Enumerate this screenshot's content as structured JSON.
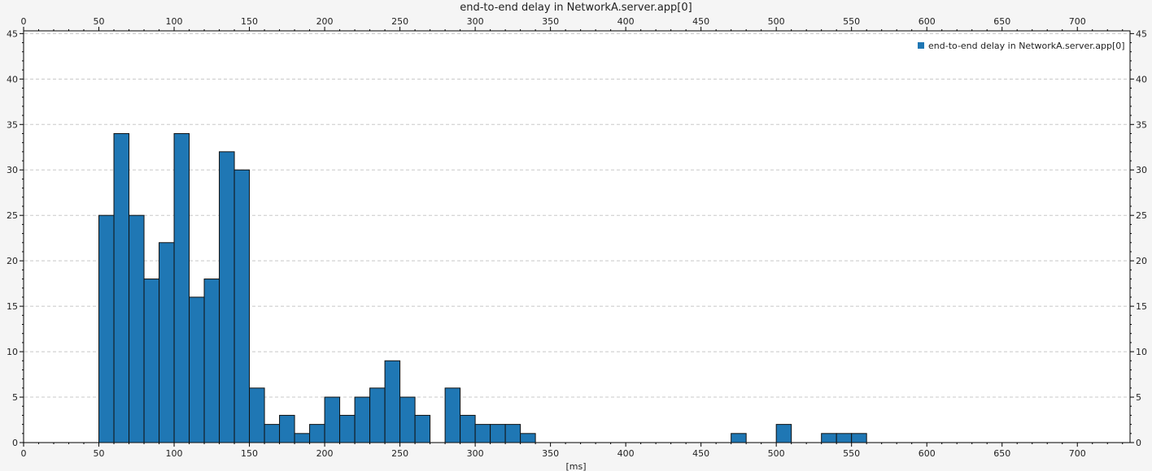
{
  "chart_data": {
    "type": "bar",
    "title": "end-to-end delay in NetworkA.server.app[0]",
    "xlabel": "[ms]",
    "ylabel": "",
    "legend": "top-right",
    "grid": true,
    "xlim": [
      0,
      735
    ],
    "ylim": [
      0,
      45.3
    ],
    "x_ticks": [
      0,
      50,
      100,
      150,
      200,
      250,
      300,
      350,
      400,
      450,
      500,
      550,
      600,
      650,
      700
    ],
    "y_ticks": [
      0,
      5,
      10,
      15,
      20,
      25,
      30,
      35,
      40,
      45
    ],
    "bin_width": 10,
    "series": [
      {
        "name": "end-to-end delay in NetworkA.server.app[0]",
        "color": "#1f77b4",
        "bins": [
          {
            "x0": 50,
            "x1": 60,
            "count": 25
          },
          {
            "x0": 60,
            "x1": 70,
            "count": 34
          },
          {
            "x0": 70,
            "x1": 80,
            "count": 25
          },
          {
            "x0": 80,
            "x1": 90,
            "count": 18
          },
          {
            "x0": 90,
            "x1": 100,
            "count": 22
          },
          {
            "x0": 100,
            "x1": 110,
            "count": 34
          },
          {
            "x0": 110,
            "x1": 120,
            "count": 16
          },
          {
            "x0": 120,
            "x1": 130,
            "count": 18
          },
          {
            "x0": 130,
            "x1": 140,
            "count": 32
          },
          {
            "x0": 140,
            "x1": 150,
            "count": 30
          },
          {
            "x0": 150,
            "x1": 160,
            "count": 6
          },
          {
            "x0": 160,
            "x1": 170,
            "count": 2
          },
          {
            "x0": 170,
            "x1": 180,
            "count": 3
          },
          {
            "x0": 180,
            "x1": 190,
            "count": 1
          },
          {
            "x0": 190,
            "x1": 200,
            "count": 2
          },
          {
            "x0": 200,
            "x1": 210,
            "count": 5
          },
          {
            "x0": 210,
            "x1": 220,
            "count": 3
          },
          {
            "x0": 220,
            "x1": 230,
            "count": 5
          },
          {
            "x0": 230,
            "x1": 240,
            "count": 6
          },
          {
            "x0": 240,
            "x1": 250,
            "count": 9
          },
          {
            "x0": 250,
            "x1": 260,
            "count": 5
          },
          {
            "x0": 260,
            "x1": 270,
            "count": 3
          },
          {
            "x0": 280,
            "x1": 290,
            "count": 6
          },
          {
            "x0": 290,
            "x1": 300,
            "count": 3
          },
          {
            "x0": 300,
            "x1": 310,
            "count": 2
          },
          {
            "x0": 310,
            "x1": 320,
            "count": 2
          },
          {
            "x0": 320,
            "x1": 330,
            "count": 2
          },
          {
            "x0": 330,
            "x1": 340,
            "count": 1
          },
          {
            "x0": 470,
            "x1": 480,
            "count": 1
          },
          {
            "x0": 500,
            "x1": 510,
            "count": 2
          },
          {
            "x0": 530,
            "x1": 540,
            "count": 1
          },
          {
            "x0": 540,
            "x1": 550,
            "count": 1
          },
          {
            "x0": 550,
            "x1": 560,
            "count": 1
          }
        ]
      }
    ]
  }
}
